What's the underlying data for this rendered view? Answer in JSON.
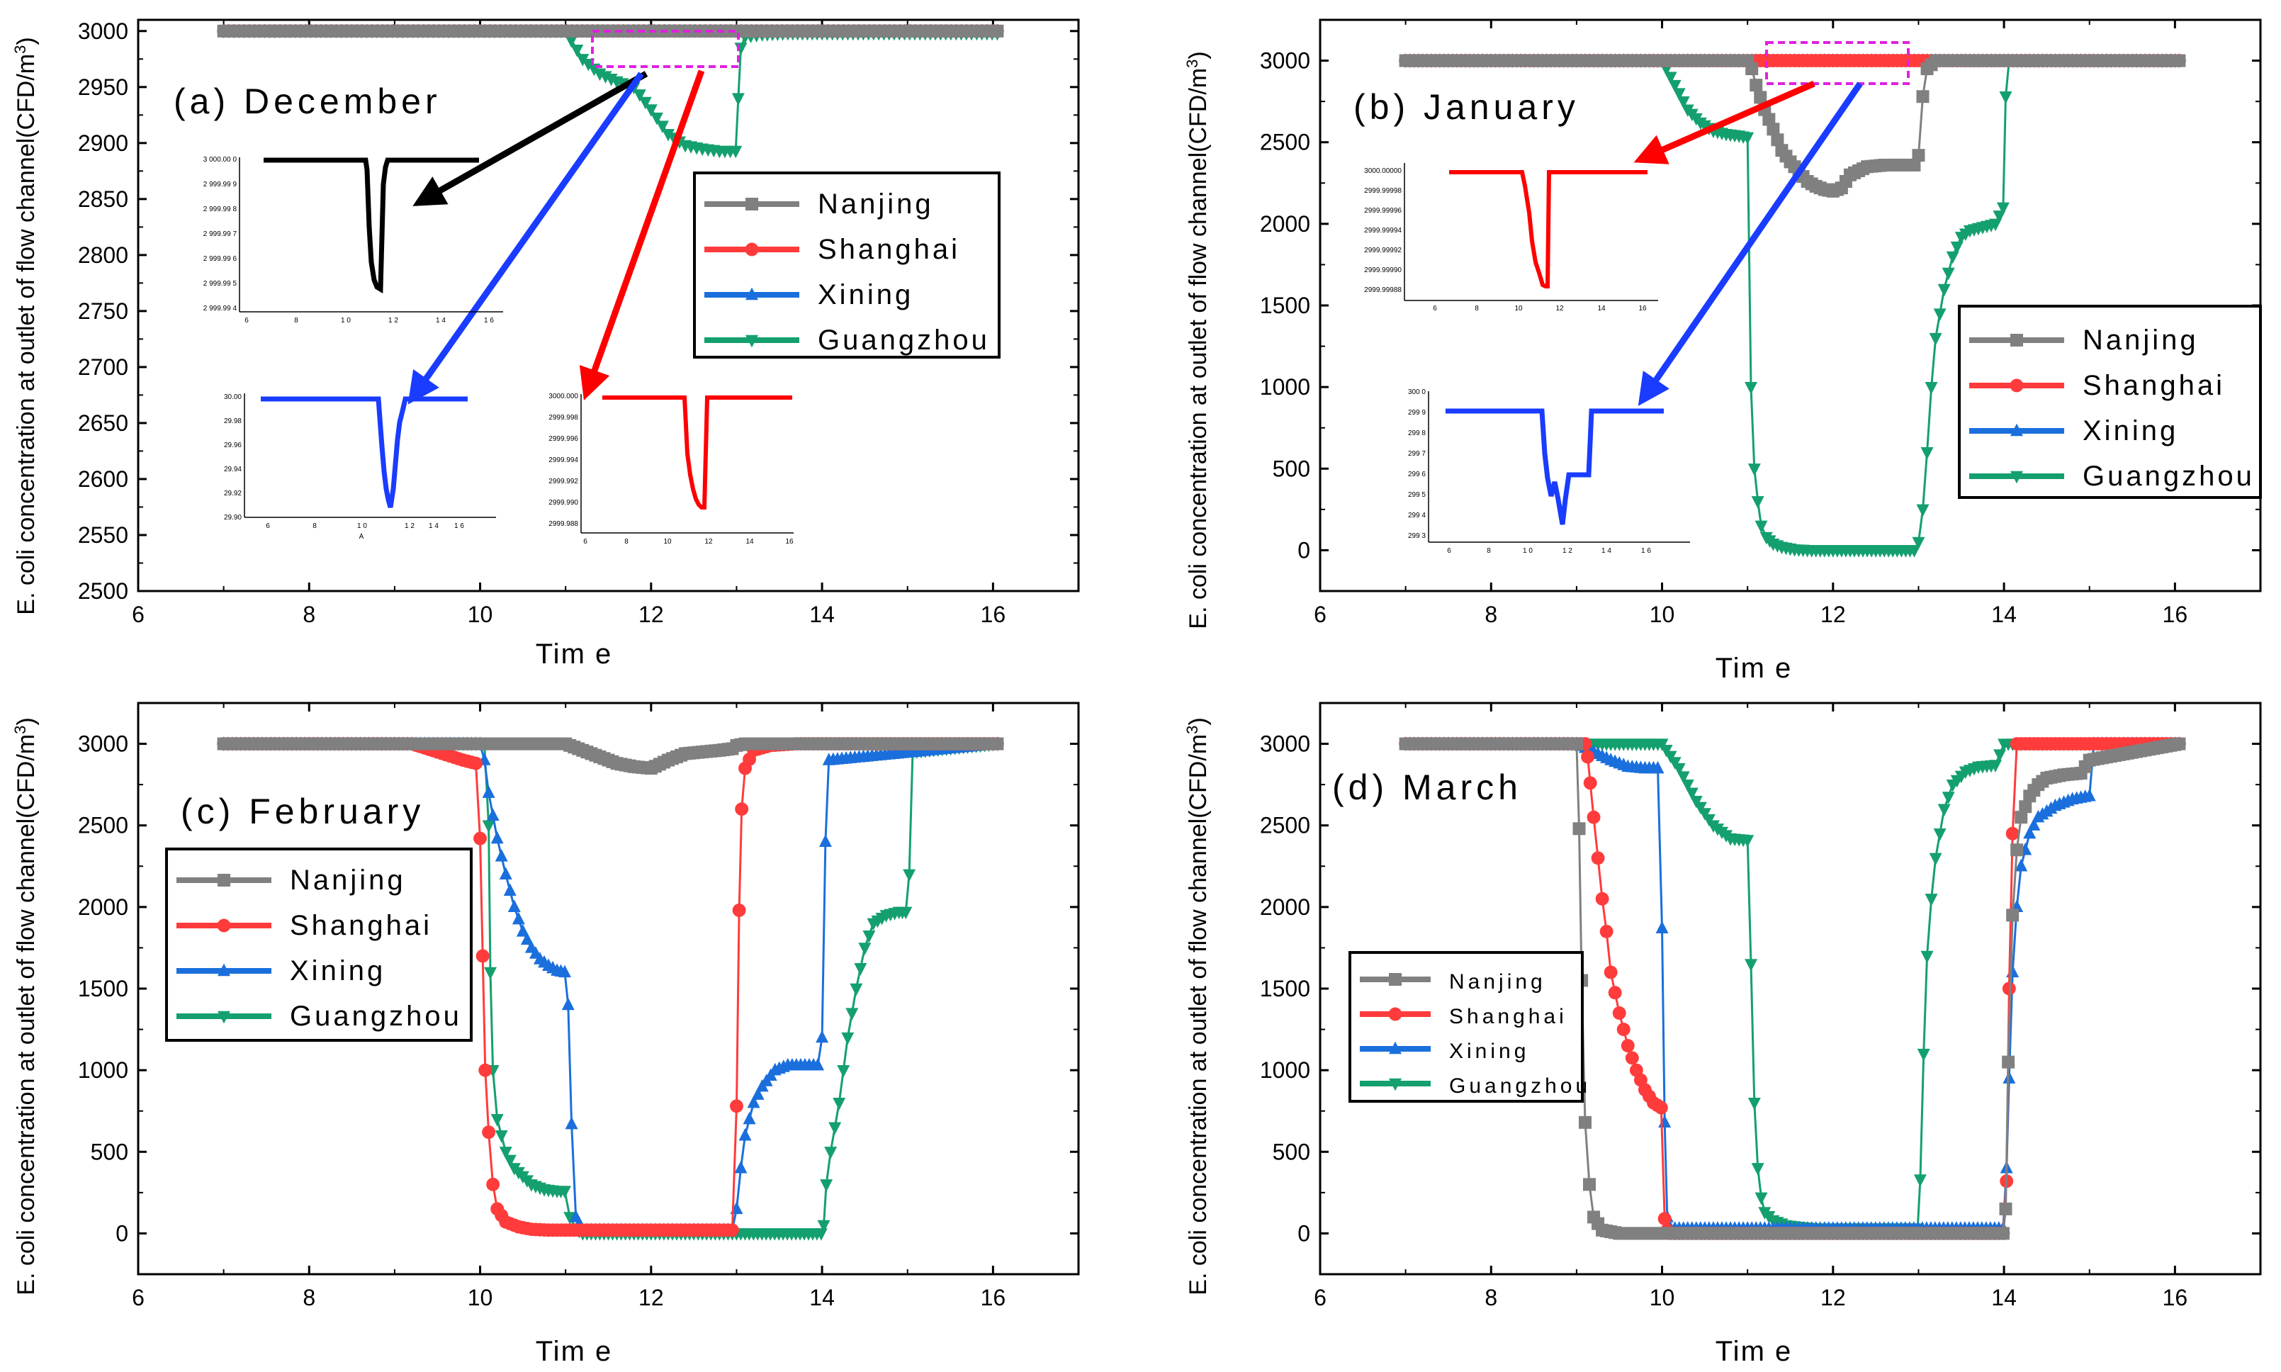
{
  "figure": {
    "series_names": [
      "Nanjing",
      "Shanghai",
      "Xining",
      "Guangzhou"
    ],
    "colors": {
      "Nanjing": "#808080",
      "Shanghai": "#ff3b3b",
      "Xining": "#1a6fdc",
      "Guangzhou": "#14a06e"
    },
    "ylabel_main": "E. coli concentration at outlet of flow channel(CFD/m",
    "ylabel_sup": "3",
    "ylabel_close": ")",
    "xlabel": "Tim e"
  },
  "chart_data": [
    {
      "id": "a",
      "type": "line",
      "title": "(a) December",
      "xlabel": "Tim e",
      "ylabel": "E. coli concentration at outlet of flow channel(CFD/m3)",
      "xlim": [
        6,
        17
      ],
      "ylim": [
        2500,
        3010
      ],
      "xticks": [
        6,
        8,
        10,
        12,
        14,
        16
      ],
      "yticks": [
        2500,
        2550,
        2600,
        2650,
        2700,
        2750,
        2800,
        2850,
        2900,
        2950,
        3000
      ],
      "legend": [
        "Nanjing",
        "Shanghai",
        "Xining",
        "Guangzhou"
      ],
      "series": [
        {
          "name": "Nanjing",
          "x": [
            7,
            16.05
          ],
          "y": [
            3000,
            3000
          ]
        },
        {
          "name": "Shanghai",
          "x": [
            7,
            16.05
          ],
          "y": [
            3000,
            3000
          ]
        },
        {
          "name": "Xining",
          "x": [
            7,
            16.05
          ],
          "y": [
            3000,
            3000
          ]
        },
        {
          "name": "Guangzhou",
          "x": [
            7,
            11,
            11.2,
            11.4,
            11.6,
            11.8,
            12,
            12.2,
            12.4,
            12.6,
            12.8,
            12.99,
            13.02,
            13.05,
            13.1,
            13.3,
            13.6,
            14,
            16.05
          ],
          "y": [
            3000,
            3000,
            2975,
            2962,
            2955,
            2950,
            2930,
            2908,
            2898,
            2895,
            2893,
            2893,
            2940,
            2985,
            2995,
            2997,
            2998,
            2998,
            2998
          ]
        }
      ],
      "annotations": [
        {
          "type": "zoom-box",
          "x": [
            11.2,
            13.0
          ],
          "y": [
            2978,
            3008
          ]
        },
        {
          "type": "inset",
          "color": "#000000",
          "ylabels": [
            "3 000.00 0",
            "2 999.99 9",
            "2 999.99 8",
            "2 999.99 7",
            "2 999.99 6",
            "2 999.99 5",
            "2 999.99 4"
          ],
          "xlabels": [
            "6",
            "8",
            "1 0",
            "1 2",
            "1 4",
            "1 6"
          ]
        },
        {
          "type": "inset",
          "color": "#1a3cff",
          "ylabels": [
            "30.00",
            "29.98",
            "29.96",
            "29.94",
            "29.92",
            "29.90"
          ],
          "xlabels": [
            "6",
            "8",
            "1 0",
            "1 2",
            "1 4",
            "1 6"
          ],
          "xlabel": "A"
        },
        {
          "type": "inset",
          "color": "#ff0000",
          "ylabels": [
            "3000.000",
            "2999.998",
            "2999.996",
            "2999.994",
            "2999.992",
            "2999.990",
            "2999.988"
          ],
          "xlabels": [
            "6",
            "8",
            "10",
            "12",
            "14",
            "16"
          ]
        }
      ]
    },
    {
      "id": "b",
      "type": "line",
      "title": "(b) January",
      "xlabel": "Tim e",
      "ylabel": "E. coli concentration at outlet of flow channel(CFD/m3)",
      "xlim": [
        6,
        17
      ],
      "ylim": [
        -250,
        3250
      ],
      "xticks": [
        6,
        8,
        10,
        12,
        14,
        16
      ],
      "yticks": [
        0,
        500,
        1000,
        1500,
        2000,
        2500,
        3000
      ],
      "legend": [
        "Nanjing",
        "Shanghai",
        "Xining",
        "Guangzhou"
      ],
      "series": [
        {
          "name": "Nanjing",
          "x": [
            7,
            11,
            11.05,
            11.1,
            11.2,
            11.3,
            11.4,
            11.5,
            11.6,
            11.7,
            11.8,
            11.9,
            12,
            12.1,
            12.2,
            12.4,
            12.6,
            12.8,
            12.95,
            13.0,
            13.05,
            13.1,
            13.2,
            14,
            16.05
          ],
          "y": [
            3000,
            3000,
            2950,
            2850,
            2700,
            2580,
            2450,
            2380,
            2320,
            2260,
            2230,
            2210,
            2200,
            2220,
            2300,
            2350,
            2360,
            2360,
            2360,
            2420,
            2780,
            2950,
            3000,
            3000,
            3000
          ]
        },
        {
          "name": "Shanghai",
          "x": [
            7,
            16.05
          ],
          "y": [
            3000,
            3000
          ]
        },
        {
          "name": "Xining",
          "x": [
            7,
            16.05
          ],
          "y": [
            3000,
            3000
          ]
        },
        {
          "name": "Guangzhou",
          "x": [
            7,
            10,
            10.05,
            10.15,
            10.3,
            10.45,
            10.6,
            10.75,
            10.9,
            11.0,
            11.04,
            11.08,
            11.12,
            11.16,
            11.22,
            11.3,
            11.4,
            11.55,
            11.75,
            12,
            12.5,
            12.95,
            13.0,
            13.05,
            13.1,
            13.15,
            13.2,
            13.3,
            13.4,
            13.5,
            13.6,
            13.75,
            13.9,
            13.99,
            14.02,
            14.06,
            16.05
          ],
          "y": [
            3000,
            3000,
            2950,
            2850,
            2700,
            2620,
            2570,
            2550,
            2540,
            2530,
            1000,
            500,
            300,
            150,
            80,
            40,
            20,
            5,
            0,
            0,
            0,
            0,
            50,
            250,
            600,
            1000,
            1300,
            1600,
            1800,
            1920,
            1960,
            1980,
            2000,
            2100,
            2780,
            3000,
            3000
          ]
        }
      ],
      "annotations": [
        {
          "type": "zoom-box",
          "x": [
            11.2,
            12.9
          ],
          "y": [
            2880,
            3130
          ]
        },
        {
          "type": "inset",
          "color": "#ff0000",
          "ylabels": [
            "3000.00000",
            "2999.99998",
            "2999.99996",
            "2999.99994",
            "2999.99992",
            "2999.99990",
            "2999.99988"
          ],
          "xlabels": [
            "6",
            "8",
            "10",
            "12",
            "14",
            "16"
          ]
        },
        {
          "type": "inset",
          "color": "#1a3cff",
          "ylabels": [
            "300 0",
            "299 9",
            "299 8",
            "299 7",
            "299 6",
            "299 5",
            "299 4",
            "299 3"
          ],
          "xlabels": [
            "6",
            "8",
            "1 0",
            "1 2",
            "1 4",
            "1 6"
          ]
        }
      ]
    },
    {
      "id": "c",
      "type": "line",
      "title": "(c) February",
      "xlabel": "Tim e",
      "ylabel": "E. coli concentration at outlet of flow channel(CFD/m3)",
      "xlim": [
        6,
        17
      ],
      "ylim": [
        -250,
        3250
      ],
      "xticks": [
        6,
        8,
        10,
        12,
        14,
        16
      ],
      "yticks": [
        0,
        500,
        1000,
        1500,
        2000,
        2500,
        3000
      ],
      "legend": [
        "Nanjing",
        "Shanghai",
        "Xining",
        "Guangzhou"
      ],
      "series": [
        {
          "name": "Nanjing",
          "x": [
            7,
            11,
            11.2,
            11.4,
            11.6,
            11.8,
            12,
            12.2,
            12.4,
            12.6,
            12.8,
            12.95,
            13,
            13.1,
            16.05
          ],
          "y": [
            3000,
            3000,
            2960,
            2920,
            2880,
            2860,
            2850,
            2900,
            2940,
            2950,
            2960,
            2970,
            2990,
            3000,
            3000
          ]
        },
        {
          "name": "Shanghai",
          "x": [
            7,
            9.2,
            9.5,
            9.8,
            9.95,
            10.0,
            10.03,
            10.06,
            10.1,
            10.15,
            10.2,
            10.3,
            10.45,
            10.6,
            10.8,
            11,
            12,
            12.95,
            13.0,
            13.03,
            13.06,
            13.1,
            13.2,
            13.4,
            13.7,
            14,
            16.05
          ],
          "y": [
            3000,
            3000,
            2950,
            2900,
            2880,
            2420,
            1700,
            1000,
            620,
            300,
            150,
            70,
            40,
            25,
            20,
            20,
            20,
            20,
            780,
            1980,
            2600,
            2850,
            2960,
            2990,
            3000,
            3000,
            3000
          ]
        },
        {
          "name": "Xining",
          "x": [
            7,
            9.5,
            10,
            10.05,
            10.1,
            10.2,
            10.3,
            10.4,
            10.5,
            10.6,
            10.7,
            10.8,
            10.9,
            10.99,
            11.03,
            11.07,
            11.12,
            11.2,
            12,
            12.95,
            13.0,
            13.05,
            13.1,
            13.2,
            13.3,
            13.45,
            13.6,
            13.8,
            13.95,
            14.0,
            14.04,
            14.08,
            16.05
          ],
          "y": [
            3000,
            3000,
            3000,
            2900,
            2700,
            2420,
            2200,
            2000,
            1850,
            1750,
            1680,
            1640,
            1610,
            1600,
            1400,
            670,
            100,
            20,
            20,
            20,
            150,
            400,
            600,
            800,
            900,
            1000,
            1030,
            1030,
            1030,
            1200,
            2400,
            2900,
            3000
          ]
        },
        {
          "name": "Guangzhou",
          "x": [
            7,
            10.05,
            10.1,
            10.12,
            10.15,
            10.2,
            10.25,
            10.3,
            10.4,
            10.5,
            10.6,
            10.75,
            10.9,
            10.99,
            11.05,
            11.12,
            11.2,
            12,
            13,
            13.99,
            14.02,
            14.05,
            14.1,
            14.2,
            14.3,
            14.4,
            14.5,
            14.6,
            14.75,
            14.9,
            14.98,
            15.02,
            15.06,
            16.05
          ],
          "y": [
            3000,
            3000,
            2500,
            1600,
            1000,
            700,
            600,
            500,
            400,
            350,
            300,
            270,
            260,
            260,
            100,
            30,
            0,
            0,
            0,
            0,
            50,
            300,
            500,
            800,
            1200,
            1500,
            1750,
            1900,
            1950,
            1970,
            1970,
            2200,
            2950,
            3000
          ]
        }
      ],
      "annotations": []
    },
    {
      "id": "d",
      "type": "line",
      "title": "(d) March",
      "xlabel": "Tim e",
      "ylabel": "E. coli concentration at outlet of flow channel(CFD/m3)",
      "xlim": [
        6,
        17
      ],
      "ylim": [
        -250,
        3250
      ],
      "xticks": [
        6,
        8,
        10,
        12,
        14,
        16
      ],
      "yticks": [
        0,
        500,
        1000,
        1500,
        2000,
        2500,
        3000
      ],
      "legend": [
        "Nanjing",
        "Shanghai",
        "Xining",
        "Guangzhou"
      ],
      "series": [
        {
          "name": "Nanjing",
          "x": [
            7,
            9,
            9.03,
            9.06,
            9.1,
            9.15,
            9.2,
            9.3,
            9.5,
            10,
            12,
            13.99,
            14.02,
            14.05,
            14.1,
            14.15,
            14.2,
            14.3,
            14.4,
            14.5,
            14.7,
            14.9,
            15.0,
            16.05
          ],
          "y": [
            3000,
            3000,
            2480,
            1550,
            680,
            300,
            100,
            20,
            0,
            0,
            0,
            0,
            150,
            1050,
            1950,
            2350,
            2550,
            2680,
            2750,
            2790,
            2810,
            2820,
            2900,
            3000
          ]
        },
        {
          "name": "Shanghai",
          "x": [
            7,
            9.1,
            9.13,
            9.16,
            9.2,
            9.25,
            9.3,
            9.35,
            9.4,
            9.5,
            9.6,
            9.7,
            9.8,
            9.9,
            9.99,
            10.03,
            10.06,
            10.1,
            12,
            13.99,
            14.03,
            14.06,
            14.1,
            14.15,
            16.05
          ],
          "y": [
            3000,
            3000,
            2920,
            2760,
            2550,
            2300,
            2050,
            1850,
            1600,
            1350,
            1150,
            1000,
            880,
            800,
            770,
            90,
            20,
            0,
            0,
            0,
            320,
            1500,
            2450,
            3000,
            3000
          ]
        },
        {
          "name": "Xining",
          "x": [
            7,
            9,
            9.2,
            9.4,
            9.6,
            9.8,
            9.95,
            10.0,
            10.03,
            10.06,
            10.1,
            12,
            13.99,
            14.03,
            14.06,
            14.1,
            14.15,
            14.2,
            14.3,
            14.4,
            14.6,
            14.8,
            15,
            15.05,
            16.05
          ],
          "y": [
            3000,
            3000,
            2950,
            2900,
            2860,
            2850,
            2850,
            1870,
            680,
            100,
            30,
            30,
            30,
            400,
            950,
            1600,
            2000,
            2250,
            2450,
            2550,
            2620,
            2660,
            2680,
            3000,
            3000
          ]
        },
        {
          "name": "Guangzhou",
          "x": [
            7,
            10,
            10.2,
            10.4,
            10.6,
            10.8,
            11,
            11.04,
            11.08,
            11.12,
            11.16,
            11.2,
            11.3,
            11.45,
            11.6,
            11.8,
            12,
            12.5,
            12.99,
            13.02,
            13.06,
            13.1,
            13.15,
            13.2,
            13.3,
            13.4,
            13.55,
            13.7,
            13.9,
            14,
            16.05
          ],
          "y": [
            3000,
            3000,
            2850,
            2650,
            2500,
            2420,
            2410,
            1650,
            800,
            400,
            220,
            130,
            80,
            50,
            40,
            30,
            30,
            30,
            30,
            330,
            1100,
            1700,
            2050,
            2300,
            2600,
            2750,
            2830,
            2860,
            2870,
            3000,
            3000
          ]
        }
      ],
      "annotations": []
    }
  ]
}
